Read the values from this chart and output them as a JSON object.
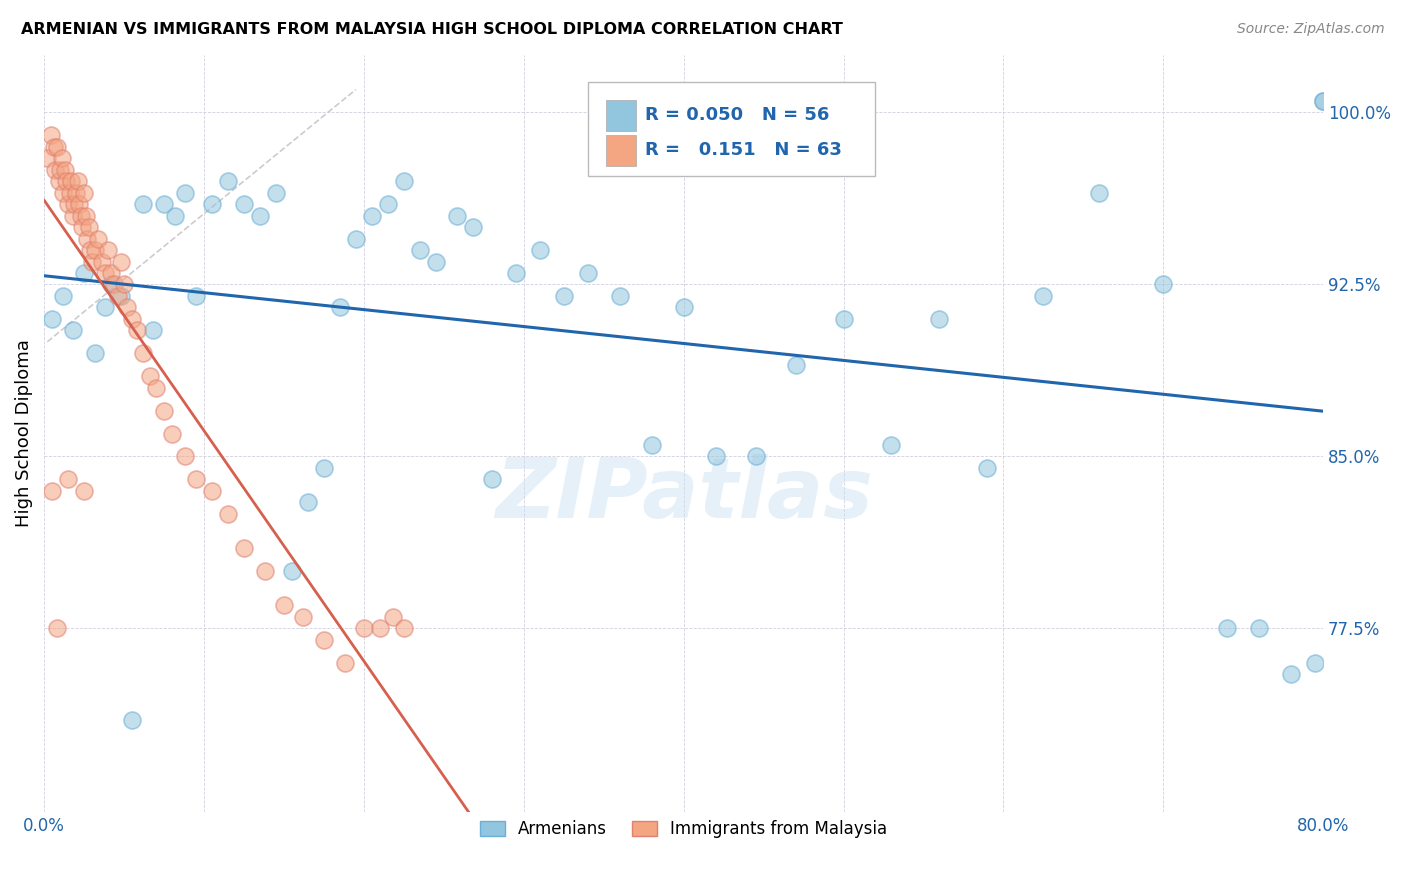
{
  "title": "ARMENIAN VS IMMIGRANTS FROM MALAYSIA HIGH SCHOOL DIPLOMA CORRELATION CHART",
  "source": "Source: ZipAtlas.com",
  "ylabel": "High School Diploma",
  "x_min": 0.0,
  "x_max": 0.8,
  "y_min": 0.695,
  "y_max": 1.025,
  "y_ticks": [
    0.775,
    0.85,
    0.925,
    1.0
  ],
  "y_tick_labels": [
    "77.5%",
    "85.0%",
    "92.5%",
    "100.0%"
  ],
  "watermark": "ZIPatlas",
  "legend_labels": [
    "Armenians",
    "Immigrants from Malaysia"
  ],
  "blue_color": "#92c5de",
  "pink_color": "#f4a582",
  "blue_line_color": "#2166ac",
  "pink_line_color": "#d6604d",
  "R_blue": 0.05,
  "N_blue": 56,
  "R_pink": 0.151,
  "N_pink": 63,
  "blue_points_x": [
    0.005,
    0.012,
    0.018,
    0.025,
    0.032,
    0.038,
    0.042,
    0.048,
    0.055,
    0.062,
    0.068,
    0.075,
    0.082,
    0.088,
    0.095,
    0.105,
    0.115,
    0.125,
    0.135,
    0.145,
    0.155,
    0.165,
    0.175,
    0.185,
    0.195,
    0.205,
    0.215,
    0.225,
    0.235,
    0.245,
    0.258,
    0.268,
    0.28,
    0.295,
    0.31,
    0.325,
    0.34,
    0.36,
    0.38,
    0.4,
    0.42,
    0.445,
    0.47,
    0.5,
    0.53,
    0.56,
    0.59,
    0.625,
    0.66,
    0.7,
    0.74,
    0.76,
    0.78,
    0.795,
    0.8,
    0.8
  ],
  "blue_points_y": [
    0.91,
    0.92,
    0.905,
    0.93,
    0.895,
    0.915,
    0.925,
    0.92,
    0.735,
    0.96,
    0.905,
    0.96,
    0.955,
    0.965,
    0.92,
    0.96,
    0.97,
    0.96,
    0.955,
    0.965,
    0.8,
    0.83,
    0.845,
    0.915,
    0.945,
    0.955,
    0.96,
    0.97,
    0.94,
    0.935,
    0.955,
    0.95,
    0.84,
    0.93,
    0.94,
    0.92,
    0.93,
    0.92,
    0.855,
    0.915,
    0.85,
    0.85,
    0.89,
    0.91,
    0.855,
    0.91,
    0.845,
    0.92,
    0.965,
    0.925,
    0.775,
    0.775,
    0.755,
    0.76,
    1.005,
    1.005
  ],
  "pink_points_x": [
    0.002,
    0.004,
    0.006,
    0.007,
    0.008,
    0.009,
    0.01,
    0.011,
    0.012,
    0.013,
    0.014,
    0.015,
    0.016,
    0.017,
    0.018,
    0.019,
    0.02,
    0.021,
    0.022,
    0.023,
    0.024,
    0.025,
    0.026,
    0.027,
    0.028,
    0.029,
    0.03,
    0.032,
    0.034,
    0.036,
    0.038,
    0.04,
    0.042,
    0.044,
    0.046,
    0.048,
    0.05,
    0.052,
    0.055,
    0.058,
    0.062,
    0.066,
    0.07,
    0.075,
    0.08,
    0.088,
    0.095,
    0.105,
    0.115,
    0.125,
    0.138,
    0.15,
    0.162,
    0.175,
    0.188,
    0.2,
    0.21,
    0.218,
    0.225,
    0.015,
    0.025,
    0.008,
    0.005
  ],
  "pink_points_y": [
    0.98,
    0.99,
    0.985,
    0.975,
    0.985,
    0.97,
    0.975,
    0.98,
    0.965,
    0.975,
    0.97,
    0.96,
    0.965,
    0.97,
    0.955,
    0.96,
    0.965,
    0.97,
    0.96,
    0.955,
    0.95,
    0.965,
    0.955,
    0.945,
    0.95,
    0.94,
    0.935,
    0.94,
    0.945,
    0.935,
    0.93,
    0.94,
    0.93,
    0.925,
    0.92,
    0.935,
    0.925,
    0.915,
    0.91,
    0.905,
    0.895,
    0.885,
    0.88,
    0.87,
    0.86,
    0.85,
    0.84,
    0.835,
    0.825,
    0.81,
    0.8,
    0.785,
    0.78,
    0.77,
    0.76,
    0.775,
    0.775,
    0.78,
    0.775,
    0.84,
    0.835,
    0.775,
    0.835
  ],
  "ref_line_x": [
    0.002,
    0.195
  ],
  "ref_line_y": [
    0.9,
    1.01
  ]
}
